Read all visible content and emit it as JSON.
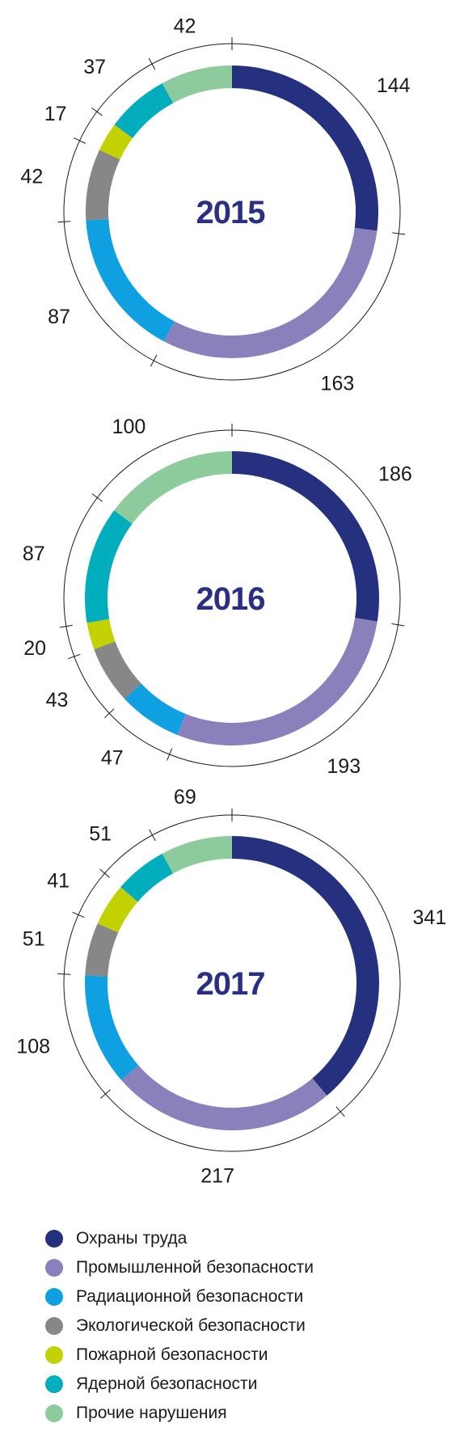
{
  "chart_data": [
    {
      "type": "pie",
      "title": "2015",
      "categories": [
        "Охраны труда",
        "Промышленной безопасности",
        "Радиационной безопасности",
        "Экологической безопасности",
        "Пожарной безопасности",
        "Ядерной безопасности",
        "Прочие нарушения"
      ],
      "values": [
        144,
        163,
        87,
        42,
        17,
        37,
        42
      ]
    },
    {
      "type": "pie",
      "title": "2016",
      "categories": [
        "Охраны труда",
        "Промышленной безопасности",
        "Радиационной безопасности",
        "Экологической безопасности",
        "Пожарной безопасности",
        "Ядерной безопасности",
        "Прочие нарушения"
      ],
      "values": [
        186,
        193,
        47,
        43,
        20,
        87,
        100
      ]
    },
    {
      "type": "pie",
      "title": "2017",
      "categories": [
        "Охраны труда",
        "Промышленной безопасности",
        "Радиационной безопасности",
        "Экологической безопасности",
        "Пожарной безопасности",
        "Ядерной безопасности",
        "Прочие нарушения"
      ],
      "values": [
        341,
        217,
        108,
        51,
        41,
        51,
        69
      ]
    }
  ],
  "legend": {
    "placement": "bottom-left",
    "items": [
      {
        "label": "Охраны труда",
        "color": "#25317f"
      },
      {
        "label": "Промышленной безопасности",
        "color": "#8a80bc"
      },
      {
        "label": "Радиационной безопасности",
        "color": "#0fa0e1"
      },
      {
        "label": "Экологической безопасности",
        "color": "#878787"
      },
      {
        "label": "Пожарной безопасности",
        "color": "#c4d100"
      },
      {
        "label": "Ядерной безопасности",
        "color": "#00adbd"
      },
      {
        "label": "Прочие нарушения",
        "color": "#8ecb9c"
      }
    ]
  }
}
